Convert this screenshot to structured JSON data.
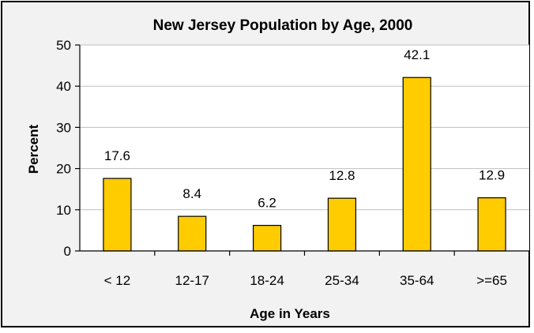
{
  "chart_data": {
    "type": "bar",
    "title": "New Jersey Population by Age, 2000",
    "xlabel": "Age in Years",
    "ylabel": "Percent",
    "categories": [
      "< 12",
      "12-17",
      "18-24",
      "25-34",
      "35-64",
      ">=65"
    ],
    "values": [
      17.6,
      8.4,
      6.2,
      12.8,
      42.1,
      12.9
    ],
    "data_labels": [
      "17.6",
      "8.4",
      "6.2",
      "12.8",
      "42.1",
      "12.9"
    ],
    "ylim": [
      0,
      50
    ],
    "yticks": [
      "0",
      "10",
      "20",
      "30",
      "40",
      "50"
    ],
    "grid": true,
    "legend": "none",
    "colors": {
      "bar": "#FFCC00",
      "bar_border": "#000000",
      "plot_background": "#FFFFFF",
      "chart_background": "#F2F2F2",
      "grid": "#BFBFBF"
    }
  }
}
